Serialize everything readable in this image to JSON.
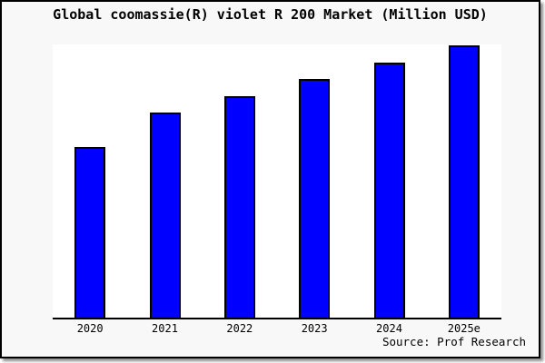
{
  "header": {
    "title": "Global coomassie(R) violet R 200 Market (Million USD)"
  },
  "footer": {
    "source": "Source: Prof Research"
  },
  "colors": {
    "bar_fill": "#0000ff",
    "bar_border": "#000000",
    "frame_background": "#f8f8f8",
    "plot_background": "#ffffff",
    "axis_line": "#000000",
    "text": "#000000"
  },
  "chart_data": {
    "type": "bar",
    "title": "Global coomassie(R) violet R 200 Market (Million USD)",
    "categories": [
      "2020",
      "2021",
      "2022",
      "2023",
      "2024",
      "2025e"
    ],
    "values": [
      62.7,
      75.3,
      81.3,
      87.7,
      93.7,
      100
    ],
    "value_note": "No numeric y-axis shown in image; values are bar heights relative to the 2025e bar (=100)",
    "xlabel": "",
    "ylabel": "",
    "ylim": [
      0,
      100
    ],
    "grid": false,
    "legend_position": "none",
    "bar_color": "#0000ff",
    "source": "Source: Prof Research"
  }
}
